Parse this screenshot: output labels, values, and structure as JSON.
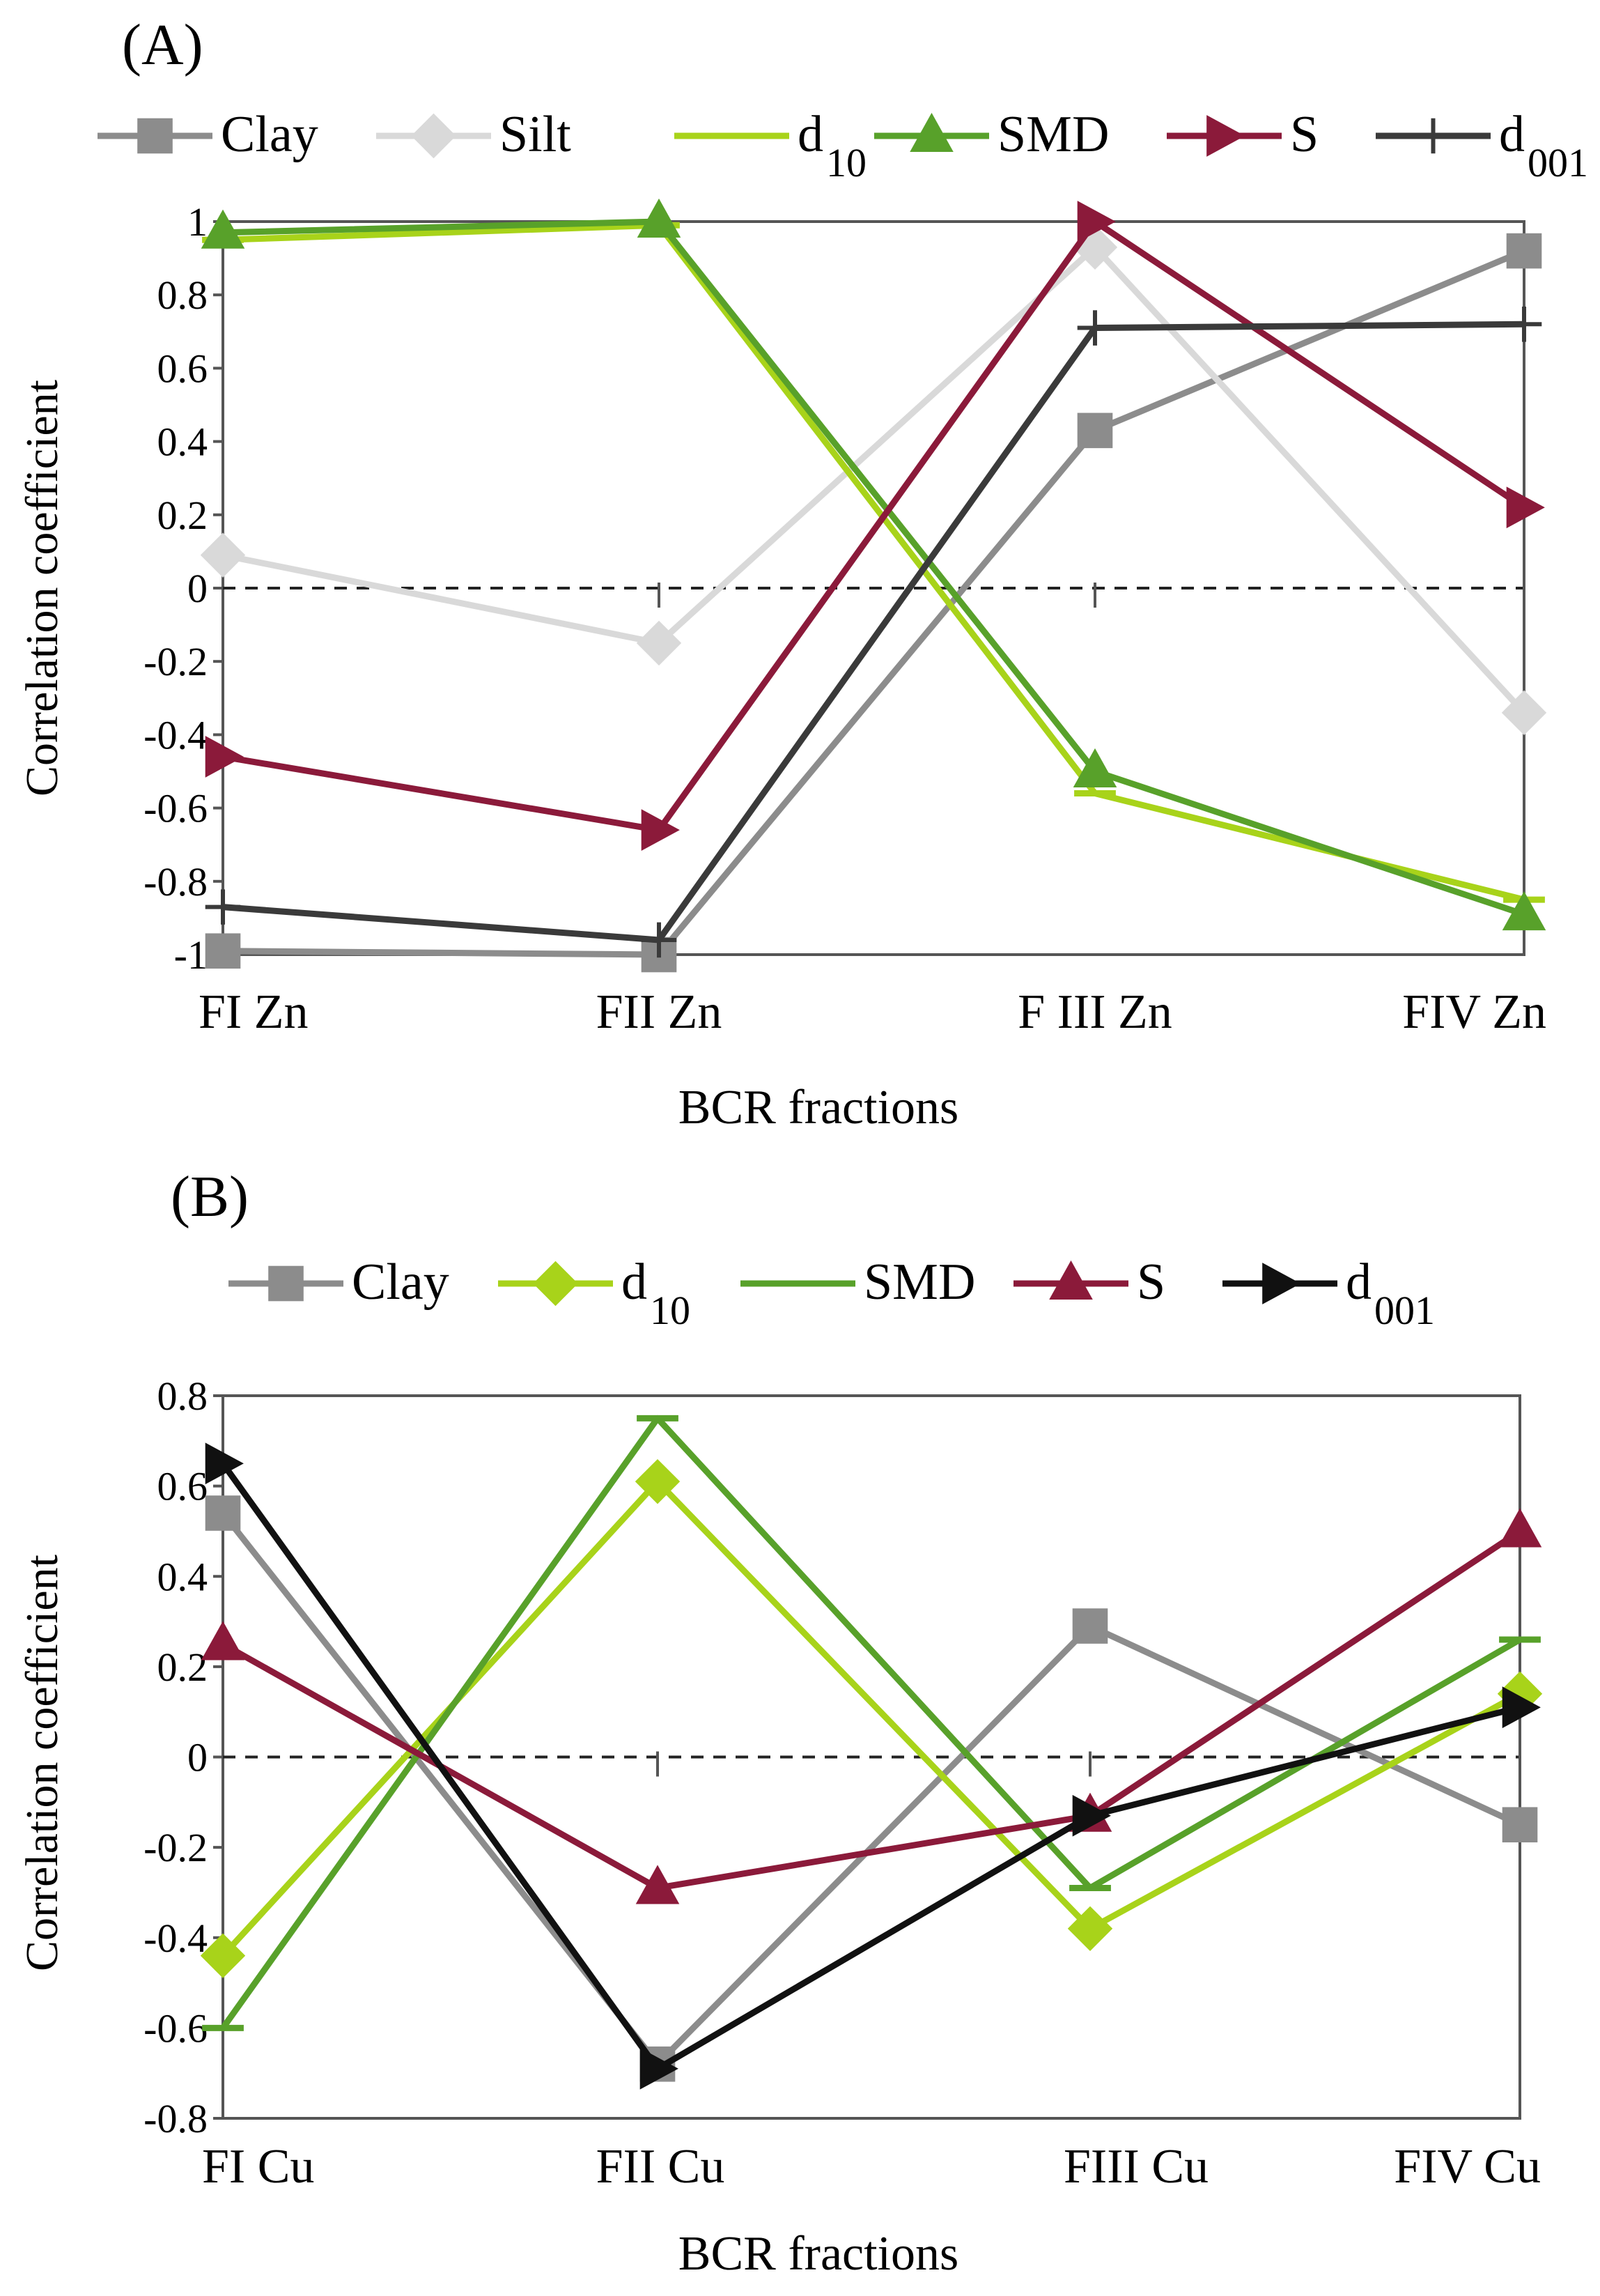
{
  "chart_data": [
    {
      "type": "line",
      "panel_label": "(A)",
      "title": "",
      "xlabel": "BCR fractions",
      "ylabel": "Correlation coefficient",
      "categories": [
        "FI Zn",
        "FII Zn",
        "F III Zn",
        "FIV Zn"
      ],
      "ylim": [
        -1,
        1
      ],
      "yticks": [
        1,
        0.8,
        0.6,
        0.4,
        0.2,
        0,
        -0.2,
        -0.4,
        -0.6,
        -0.8,
        -1
      ],
      "ytick_labels": [
        "1",
        "0.8",
        "0.6",
        "0.4",
        "0.2",
        "0",
        "-0.2",
        "-0.4",
        "-0.6",
        "-0.8",
        "-1"
      ],
      "zero_line": "dashed",
      "legend_position": "top",
      "series": [
        {
          "name": "Clay",
          "sub": "",
          "color": "#8c8c8c",
          "marker": "square",
          "values": [
            -0.99,
            -1.0,
            0.43,
            0.92
          ]
        },
        {
          "name": "Silt",
          "sub": "",
          "color": "#d9d9d9",
          "marker": "diamond",
          "values": [
            0.09,
            -0.15,
            0.93,
            -0.34
          ]
        },
        {
          "name": "d",
          "sub": "10",
          "color": "#a8d31a",
          "marker": "dash",
          "values": [
            0.95,
            0.99,
            -0.56,
            -0.85
          ]
        },
        {
          "name": "SMD",
          "sub": "",
          "color": "#58a12a",
          "marker": "triangle",
          "values": [
            0.97,
            1.0,
            -0.5,
            -0.89
          ]
        },
        {
          "name": "S",
          "sub": "",
          "color": "#8b1a3a",
          "marker": "triangle-right",
          "values": [
            -0.46,
            -0.66,
            1.0,
            0.22
          ]
        },
        {
          "name": "d",
          "sub": "001",
          "color": "#3a3a3a",
          "marker": "plus",
          "values": [
            -0.87,
            -0.96,
            0.71,
            0.72
          ]
        }
      ]
    },
    {
      "type": "line",
      "panel_label": "(B)",
      "title": "",
      "xlabel": "BCR fractions",
      "ylabel": "Correlation coefficient",
      "categories": [
        "FI Cu",
        "FII Cu",
        "FIII Cu",
        "FIV Cu"
      ],
      "ylim": [
        -0.8,
        0.8
      ],
      "yticks": [
        0.8,
        0.6,
        0.4,
        0.2,
        0,
        -0.2,
        -0.4,
        -0.6,
        -0.8
      ],
      "ytick_labels": [
        "0.8",
        "0.6",
        "0.4",
        "0.2",
        "0",
        "-0.2",
        "-0.4",
        "-0.6",
        "-0.8"
      ],
      "zero_line": "dashed",
      "legend_position": "top",
      "series": [
        {
          "name": "Clay",
          "sub": "",
          "color": "#8c8c8c",
          "marker": "square",
          "values": [
            0.54,
            -0.68,
            0.29,
            -0.15
          ]
        },
        {
          "name": "d",
          "sub": "10",
          "color": "#a8d31a",
          "marker": "diamond",
          "values": [
            -0.44,
            0.61,
            -0.38,
            0.14
          ]
        },
        {
          "name": "SMD",
          "sub": "",
          "color": "#58a12a",
          "marker": "dash",
          "values": [
            -0.6,
            0.75,
            -0.29,
            0.26
          ]
        },
        {
          "name": "S",
          "sub": "",
          "color": "#8b1a3a",
          "marker": "triangle",
          "values": [
            0.25,
            -0.29,
            -0.13,
            0.5
          ]
        },
        {
          "name": "d",
          "sub": "001",
          "color": "#111111",
          "marker": "triangle-right",
          "values": [
            0.65,
            -0.69,
            -0.13,
            0.11
          ]
        }
      ]
    }
  ]
}
